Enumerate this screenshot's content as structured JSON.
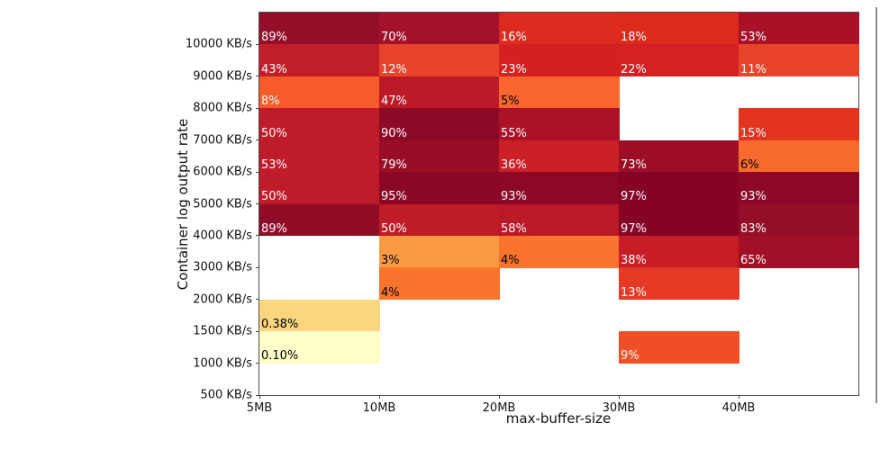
{
  "figure": {
    "background": "#ffffff",
    "spine_color": "#4a4a4a",
    "empty_cell_color": "#ffffff"
  },
  "chart_data": {
    "type": "heatmap",
    "title": "",
    "xlabel": "max-buffer-size",
    "ylabel": "Container log output rate",
    "x_categories": [
      "5MB",
      "10MB",
      "20MB",
      "30MB",
      "40MB"
    ],
    "y_categories": [
      "10000 KB/s",
      "9000 KB/s",
      "8000 KB/s",
      "7000 KB/s",
      "6000 KB/s",
      "5000 KB/s",
      "4000 KB/s",
      "3000 KB/s",
      "2000 KB/s",
      "1500 KB/s",
      "1000 KB/s",
      "500 KB/s"
    ],
    "rows": [
      {
        "y": "10000 KB/s",
        "cells": [
          {
            "label": "89%",
            "value": 89,
            "color": "#94102a",
            "text_color": "#ffffff"
          },
          {
            "label": "70%",
            "value": 70,
            "color": "#a3122a",
            "text_color": "#ffffff"
          },
          {
            "label": "16%",
            "value": 16,
            "color": "#dd2b20",
            "text_color": "#ffffff"
          },
          {
            "label": "18%",
            "value": 18,
            "color": "#dc2a1b",
            "text_color": "#ffffff"
          },
          {
            "label": "53%",
            "value": 53,
            "color": "#aa1129",
            "text_color": "#ffffff"
          }
        ]
      },
      {
        "y": "9000 KB/s",
        "cells": [
          {
            "label": "43%",
            "value": 43,
            "color": "#c11e28",
            "text_color": "#ffffff"
          },
          {
            "label": "12%",
            "value": 12,
            "color": "#e8432b",
            "text_color": "#ffffff"
          },
          {
            "label": "23%",
            "value": 23,
            "color": "#d42120",
            "text_color": "#ffffff"
          },
          {
            "label": "22%",
            "value": 22,
            "color": "#d32124",
            "text_color": "#ffffff"
          },
          {
            "label": "11%",
            "value": 11,
            "color": "#e8442b",
            "text_color": "#ffffff"
          }
        ]
      },
      {
        "y": "8000 KB/s",
        "cells": [
          {
            "label": "8%",
            "value": 8,
            "color": "#f75b29",
            "text_color": "#ffffff"
          },
          {
            "label": "47%",
            "value": 47,
            "color": "#bd1a27",
            "text_color": "#ffffff"
          },
          {
            "label": "5%",
            "value": 5,
            "color": "#f8662d",
            "text_color": "#000000"
          },
          null,
          null
        ]
      },
      {
        "y": "7000 KB/s",
        "cells": [
          {
            "label": "50%",
            "value": 50,
            "color": "#c01b29",
            "text_color": "#ffffff"
          },
          {
            "label": "90%",
            "value": 90,
            "color": "#8d0a26",
            "text_color": "#ffffff"
          },
          {
            "label": "55%",
            "value": 55,
            "color": "#ab1228",
            "text_color": "#ffffff"
          },
          null,
          {
            "label": "15%",
            "value": 15,
            "color": "#e33420",
            "text_color": "#ffffff"
          }
        ]
      },
      {
        "y": "6000 KB/s",
        "cells": [
          {
            "label": "53%",
            "value": 53,
            "color": "#c01b2a",
            "text_color": "#ffffff"
          },
          {
            "label": "79%",
            "value": 79,
            "color": "#990d26",
            "text_color": "#ffffff"
          },
          {
            "label": "36%",
            "value": 36,
            "color": "#cc1f26",
            "text_color": "#ffffff"
          },
          {
            "label": "73%",
            "value": 73,
            "color": "#9b0e26",
            "text_color": "#ffffff"
          },
          {
            "label": "6%",
            "value": 6,
            "color": "#f96a2e",
            "text_color": "#000000"
          }
        ]
      },
      {
        "y": "5000 KB/s",
        "cells": [
          {
            "label": "50%",
            "value": 50,
            "color": "#c01b29",
            "text_color": "#ffffff"
          },
          {
            "label": "95%",
            "value": 95,
            "color": "#8a0726",
            "text_color": "#ffffff"
          },
          {
            "label": "93%",
            "value": 93,
            "color": "#8c0826",
            "text_color": "#ffffff"
          },
          {
            "label": "97%",
            "value": 97,
            "color": "#850426",
            "text_color": "#ffffff"
          },
          {
            "label": "93%",
            "value": 93,
            "color": "#8c0826",
            "text_color": "#ffffff"
          }
        ]
      },
      {
        "y": "4000 KB/s",
        "cells": [
          {
            "label": "89%",
            "value": 89,
            "color": "#900c27",
            "text_color": "#ffffff"
          },
          {
            "label": "50%",
            "value": 50,
            "color": "#c01c28",
            "text_color": "#ffffff"
          },
          {
            "label": "58%",
            "value": 58,
            "color": "#bb1928",
            "text_color": "#ffffff"
          },
          {
            "label": "97%",
            "value": 97,
            "color": "#850426",
            "text_color": "#ffffff"
          },
          {
            "label": "83%",
            "value": 83,
            "color": "#950e27",
            "text_color": "#ffffff"
          }
        ]
      },
      {
        "y": "3000 KB/s",
        "cells": [
          null,
          {
            "label": "3%",
            "value": 3,
            "color": "#fc9a43",
            "text_color": "#000000"
          },
          {
            "label": "4%",
            "value": 4,
            "color": "#f9742d",
            "text_color": "#000000"
          },
          {
            "label": "38%",
            "value": 38,
            "color": "#c61d26",
            "text_color": "#ffffff"
          },
          {
            "label": "65%",
            "value": 65,
            "color": "#a21027",
            "text_color": "#ffffff"
          }
        ]
      },
      {
        "y": "2000 KB/s",
        "cells": [
          null,
          {
            "label": "4%",
            "value": 4,
            "color": "#f9742d",
            "text_color": "#000000"
          },
          null,
          {
            "label": "13%",
            "value": 13,
            "color": "#e53a25",
            "text_color": "#ffffff"
          },
          null
        ]
      },
      {
        "y": "1500 KB/s",
        "cells": [
          {
            "label": "0.38%",
            "value": 0.38,
            "color": "#fcd67e",
            "text_color": "#000000"
          },
          null,
          null,
          null,
          null
        ]
      },
      {
        "y": "1000 KB/s",
        "cells": [
          {
            "label": "0.10%",
            "value": 0.1,
            "color": "#ffffc9",
            "text_color": "#000000"
          },
          null,
          null,
          {
            "label": "9%",
            "value": 9,
            "color": "#f04e27",
            "text_color": "#ffffff"
          },
          null
        ]
      },
      {
        "y": "500 KB/s",
        "cells": [
          null,
          null,
          null,
          null,
          null
        ]
      }
    ]
  }
}
